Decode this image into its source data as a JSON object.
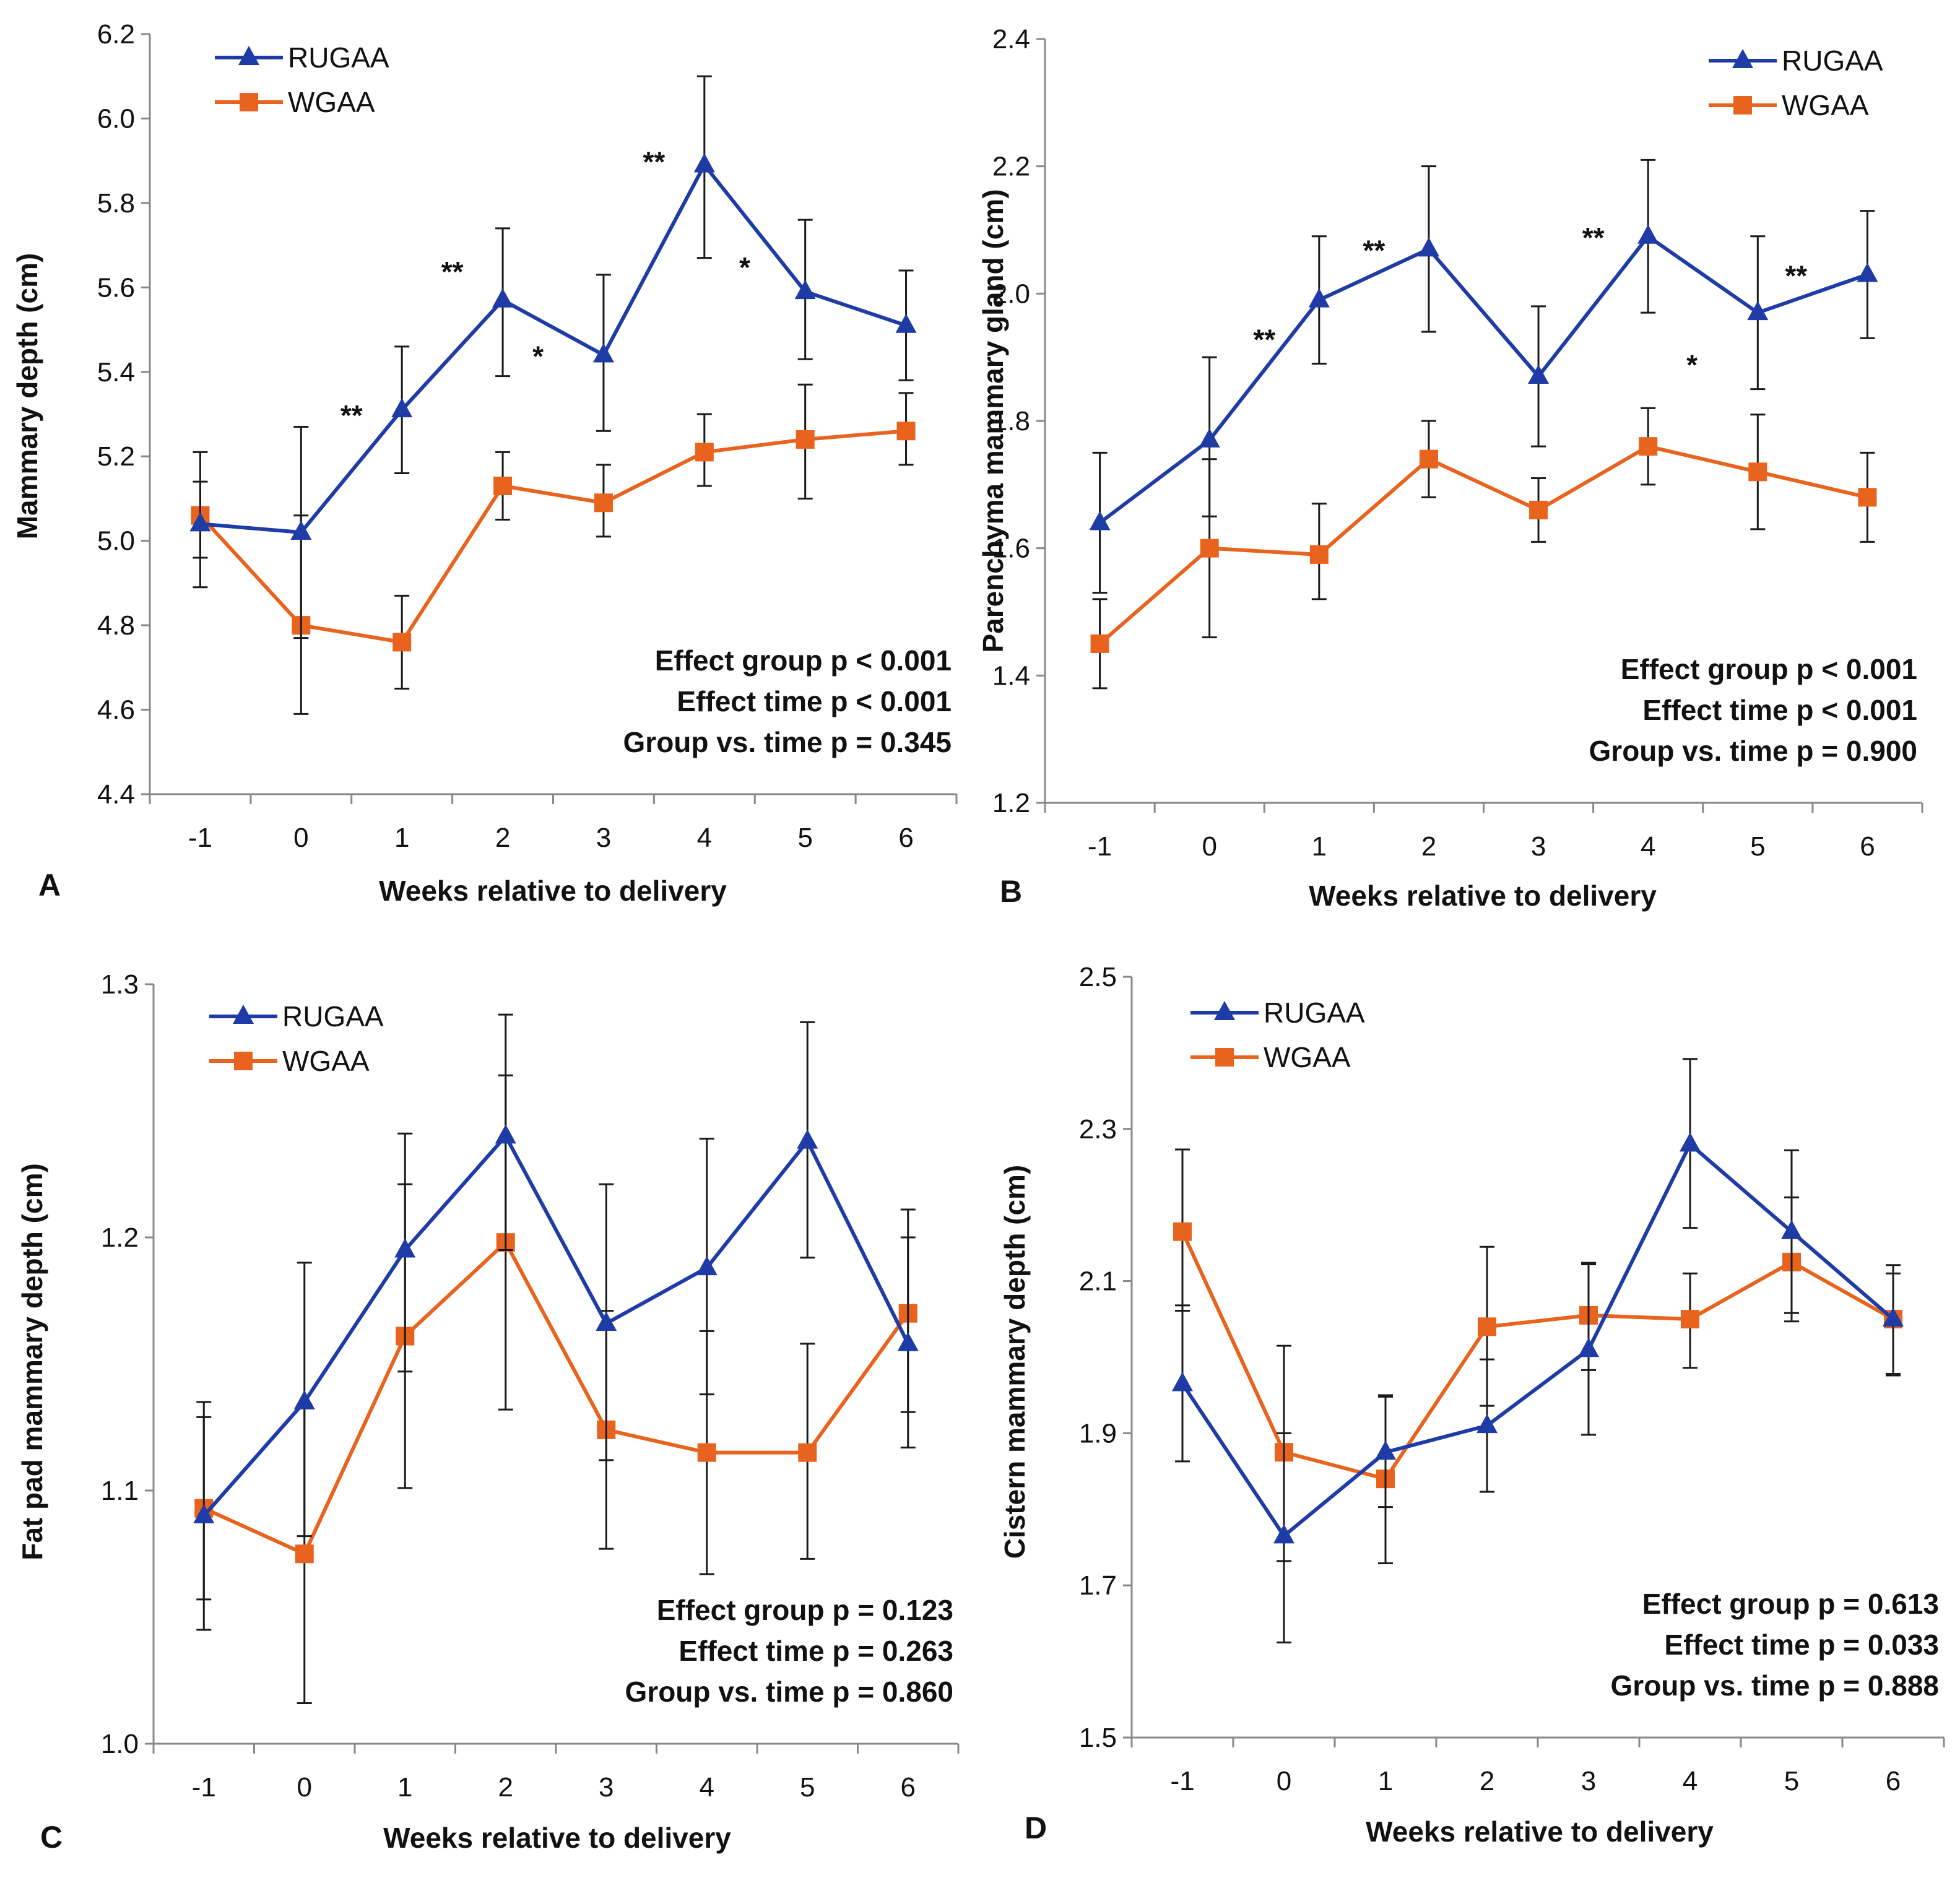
{
  "figure": {
    "colors": {
      "series_blue": "#1f3ca6",
      "series_orange": "#e8641e",
      "axis": "#888888",
      "error_bar": "#1a1a1a"
    }
  },
  "chart_data": [
    {
      "panel": "A",
      "type": "line",
      "ylabel": "Mammary depth (cm)",
      "xlabel": "Weeks relative to delivery",
      "ylim": [
        4.4,
        6.2
      ],
      "yticks": [
        "4.4",
        "4.6",
        "4.8",
        "5.0",
        "5.2",
        "5.4",
        "5.6",
        "5.8",
        "6.0",
        "6.2"
      ],
      "categories": [
        "-1",
        "0",
        "1",
        "2",
        "3",
        "4",
        "5",
        "6"
      ],
      "legend": {
        "placement": "top-left"
      },
      "series": [
        {
          "name": "RUGAA",
          "marker": "triangle",
          "color": "#1f3ca6",
          "values": [
            5.04,
            5.02,
            5.31,
            5.57,
            5.44,
            5.89,
            5.59,
            5.51
          ],
          "err_low": [
            4.96,
            4.77,
            5.16,
            5.39,
            5.26,
            5.67,
            5.43,
            5.38
          ],
          "err_high": [
            5.14,
            5.27,
            5.46,
            5.74,
            5.63,
            6.1,
            5.76,
            5.64
          ]
        },
        {
          "name": "WGAA",
          "marker": "square",
          "color": "#e8641e",
          "values": [
            5.06,
            4.8,
            4.76,
            5.13,
            5.09,
            5.21,
            5.24,
            5.26
          ],
          "err_low": [
            4.89,
            4.59,
            4.65,
            5.05,
            5.01,
            5.13,
            5.1,
            5.18
          ],
          "err_high": [
            5.21,
            5.06,
            4.87,
            5.21,
            5.18,
            5.3,
            5.37,
            5.35
          ]
        }
      ],
      "annotations": [
        {
          "text": "**",
          "x": 1.5,
          "y": 5.3
        },
        {
          "text": "**",
          "x": 2.5,
          "y": 5.64
        },
        {
          "text": "*",
          "x": 3.35,
          "y": 5.44
        },
        {
          "text": "**",
          "x": 4.5,
          "y": 5.9
        },
        {
          "text": "*",
          "x": 5.4,
          "y": 5.65
        }
      ],
      "stats": [
        "Effect group p < 0.001",
        "Effect time p < 0.001",
        "Group vs. time p = 0.345"
      ]
    },
    {
      "panel": "B",
      "type": "line",
      "ylabel": "Parenchyma mammary gland (cm)",
      "xlabel": "Weeks relative to delivery",
      "ylim": [
        1.2,
        2.4
      ],
      "yticks": [
        "1.2",
        "1.4",
        "1.6",
        "1.8",
        "2.0",
        "2.2",
        "2.4"
      ],
      "categories": [
        "-1",
        "0",
        "1",
        "2",
        "3",
        "4",
        "5",
        "6"
      ],
      "legend": {
        "placement": "top-right"
      },
      "series": [
        {
          "name": "RUGAA",
          "marker": "triangle",
          "color": "#1f3ca6",
          "values": [
            1.64,
            1.77,
            1.99,
            2.07,
            1.87,
            2.09,
            1.97,
            2.03
          ],
          "err_low": [
            1.53,
            1.65,
            1.89,
            1.94,
            1.76,
            1.97,
            1.85,
            1.93
          ],
          "err_high": [
            1.75,
            1.9,
            2.09,
            2.2,
            1.98,
            2.21,
            2.09,
            2.13
          ]
        },
        {
          "name": "WGAA",
          "marker": "square",
          "color": "#e8641e",
          "values": [
            1.45,
            1.6,
            1.59,
            1.74,
            1.66,
            1.76,
            1.72,
            1.68
          ],
          "err_low": [
            1.38,
            1.46,
            1.52,
            1.68,
            1.61,
            1.7,
            1.63,
            1.61
          ],
          "err_high": [
            1.52,
            1.74,
            1.67,
            1.8,
            1.71,
            1.82,
            1.81,
            1.75
          ]
        }
      ],
      "annotations": [
        {
          "text": "**",
          "x": 1.5,
          "y": 1.93
        },
        {
          "text": "**",
          "x": 2.5,
          "y": 2.07
        },
        {
          "text": "**",
          "x": 4.5,
          "y": 2.09
        },
        {
          "text": "*",
          "x": 5.4,
          "y": 1.89
        },
        {
          "text": "**",
          "x": 6.35,
          "y": 2.03
        }
      ],
      "stats": [
        "Effect group p < 0.001",
        "Effect time p < 0.001",
        "Group vs. time p = 0.900"
      ]
    },
    {
      "panel": "C",
      "type": "line",
      "ylabel": "Fat pad mammary depth (cm)",
      "xlabel": "Weeks relative to delivery",
      "ylim": [
        1.0,
        1.3
      ],
      "yticks": [
        "1.0",
        "1.1",
        "1.2",
        "1.3"
      ],
      "categories": [
        "-1",
        "0",
        "1",
        "2",
        "3",
        "4",
        "5",
        "6"
      ],
      "legend": {
        "placement": "top-left"
      },
      "series": [
        {
          "name": "RUGAA",
          "marker": "triangle",
          "color": "#1f3ca6",
          "values": [
            1.09,
            1.135,
            1.195,
            1.24,
            1.166,
            1.188,
            1.238,
            1.158
          ],
          "err_low": [
            1.045,
            1.082,
            1.147,
            1.195,
            1.112,
            1.138,
            1.192,
            1.117
          ],
          "err_high": [
            1.135,
            1.19,
            1.241,
            1.288,
            1.221,
            1.239,
            1.285,
            1.2
          ]
        },
        {
          "name": "WGAA",
          "marker": "square",
          "color": "#e8641e",
          "values": [
            1.093,
            1.075,
            1.161,
            1.198,
            1.124,
            1.115,
            1.115,
            1.17
          ],
          "err_low": [
            1.057,
            1.016,
            1.101,
            1.132,
            1.077,
            1.067,
            1.073,
            1.131
          ],
          "err_high": [
            1.129,
            1.134,
            1.221,
            1.264,
            1.171,
            1.163,
            1.158,
            1.211
          ]
        }
      ],
      "annotations": [],
      "stats": [
        "Effect group p = 0.123",
        "Effect time p = 0.263",
        "Group vs. time p = 0.860"
      ]
    },
    {
      "panel": "D",
      "type": "line",
      "ylabel": "Cistern mammary depth (cm)",
      "xlabel": "Weeks relative to delivery",
      "ylim": [
        1.5,
        2.5
      ],
      "yticks": [
        "1.5",
        "1.7",
        "1.9",
        "2.1",
        "2.3",
        "2.5"
      ],
      "categories": [
        "-1",
        "0",
        "1",
        "2",
        "3",
        "4",
        "5",
        "6"
      ],
      "legend": {
        "placement": "top-left"
      },
      "series": [
        {
          "name": "RUGAA",
          "marker": "triangle",
          "color": "#1f3ca6",
          "values": [
            1.965,
            1.765,
            1.875,
            1.91,
            2.01,
            2.28,
            2.165,
            2.05
          ],
          "err_low": [
            1.863,
            1.732,
            1.803,
            1.823,
            1.898,
            2.17,
            2.058,
            1.976
          ],
          "err_high": [
            2.068,
            1.9,
            1.948,
            1.997,
            2.122,
            2.392,
            2.272,
            2.121
          ]
        },
        {
          "name": "WGAA",
          "marker": "square",
          "color": "#e8641e",
          "values": [
            2.165,
            1.875,
            1.84,
            2.04,
            2.055,
            2.05,
            2.125,
            2.05
          ],
          "err_low": [
            2.061,
            1.625,
            1.729,
            1.936,
            1.983,
            1.986,
            2.047,
            1.978
          ],
          "err_high": [
            2.273,
            2.015,
            1.95,
            2.145,
            2.124,
            2.11,
            2.21,
            2.11
          ]
        }
      ],
      "annotations": [],
      "stats": [
        "Effect group p = 0.613",
        "Effect time p = 0.033",
        "Group vs. time p = 0.888"
      ]
    }
  ]
}
